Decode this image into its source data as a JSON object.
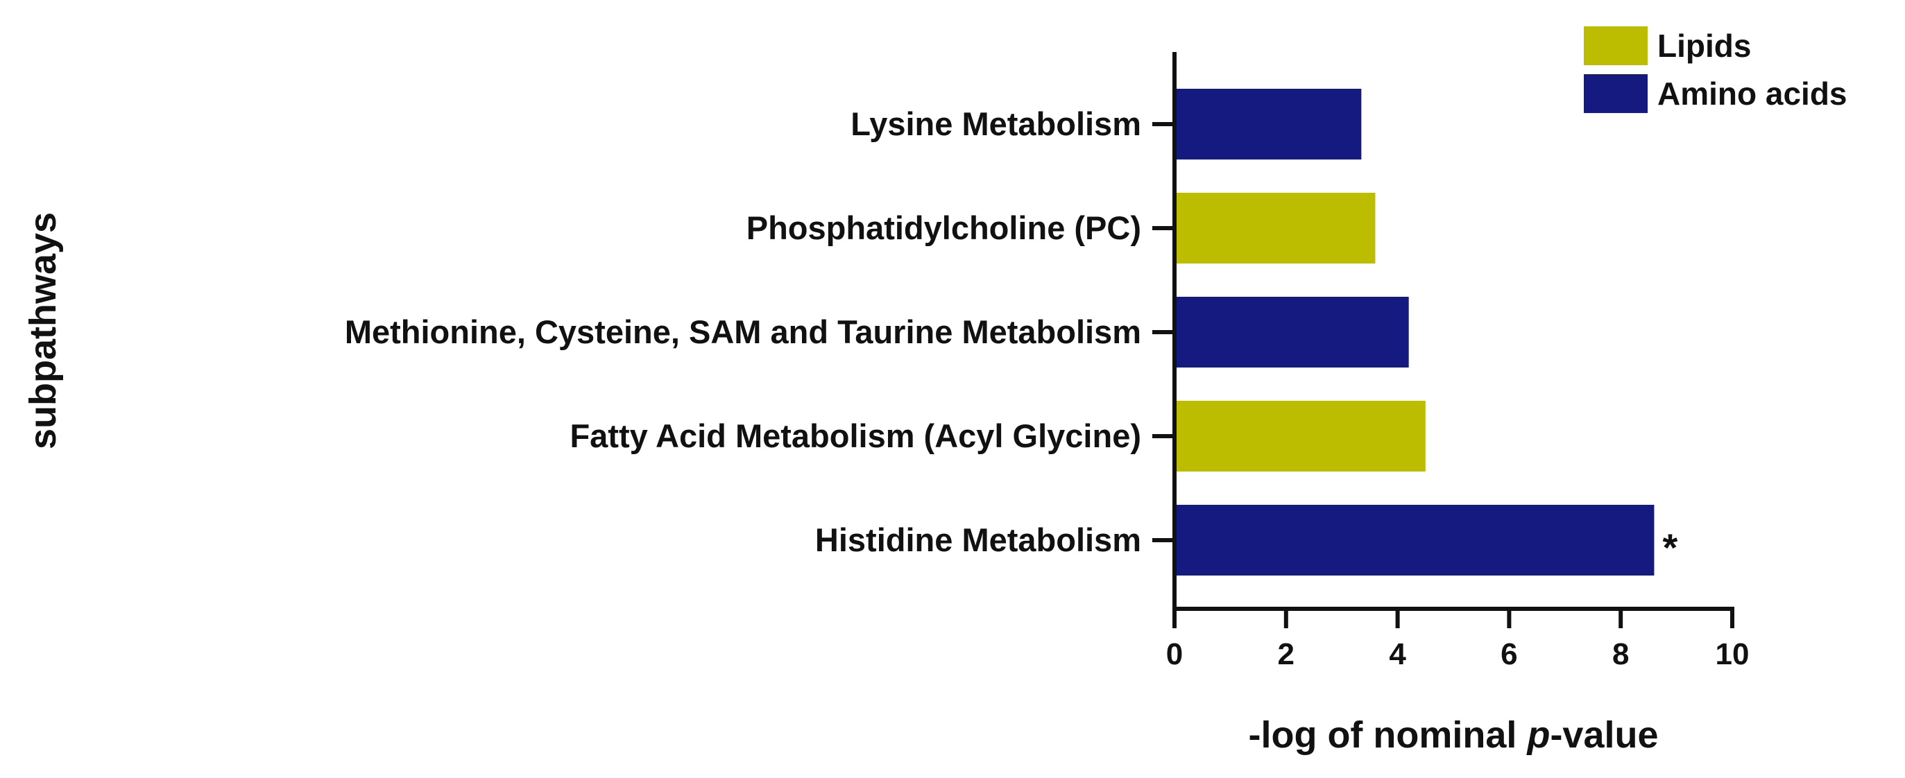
{
  "chart_data": {
    "type": "bar",
    "orientation": "horizontal",
    "categories": [
      "Lysine Metabolism",
      "Phosphatidylcholine (PC)",
      "Methionine, Cysteine, SAM and Taurine Metabolism",
      "Fatty Acid Metabolism (Acyl Glycine)",
      "Histidine Metabolism"
    ],
    "values": [
      3.35,
      3.6,
      4.2,
      4.5,
      8.6
    ],
    "groups": [
      "Amino acids",
      "Lipids",
      "Amino acids",
      "Lipids",
      "Amino acids"
    ],
    "annotations": [
      "",
      "",
      "",
      "",
      "*"
    ],
    "title": "",
    "xlabel_prefix": "-log of nominal ",
    "xlabel_italic": "p",
    "xlabel_suffix": "-value",
    "ylabel": "subpathways",
    "xlim": [
      0,
      10
    ],
    "xticks": [
      "0",
      "2",
      "4",
      "6",
      "8",
      "10"
    ],
    "grid": false,
    "legend_position": "top-right",
    "legend": [
      {
        "name": "Lipids",
        "color": "#BDBD00"
      },
      {
        "name": "Amino acids",
        "color": "#141A80"
      }
    ]
  }
}
